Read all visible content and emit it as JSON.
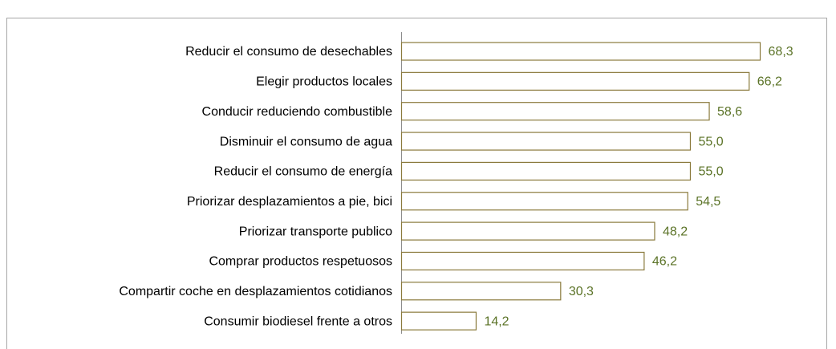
{
  "chart_data": {
    "type": "barh",
    "categories": [
      "Reducir el consumo de desechables",
      "Elegir productos locales",
      "Conducir reduciendo combustible",
      "Disminuir el consumo de agua",
      "Reducir el consumo de energía",
      "Priorizar desplazamientos a pie, bici",
      "Priorizar transporte publico",
      "Comprar productos respetuosos",
      "Compartir coche en desplazamientos cotidianos",
      "Consumir biodiesel frente a otros"
    ],
    "values": [
      68.3,
      66.2,
      58.6,
      55.0,
      55.0,
      54.5,
      48.2,
      46.2,
      30.3,
      14.2
    ],
    "value_labels": [
      "68,3",
      "66,2",
      "58,6",
      "55,0",
      "55,0",
      "54,5",
      "48,2",
      "46,2",
      "30,3",
      "14,2"
    ],
    "color": "#ffffff",
    "edge_color": "#8a7a3c",
    "label_color": "#5b7327"
  }
}
